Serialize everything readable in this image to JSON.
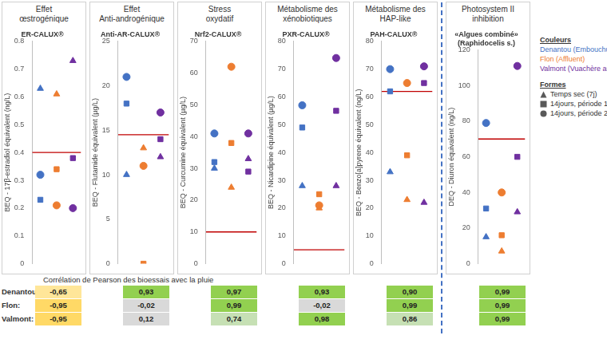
{
  "sites": [
    {
      "name": "Denantou (Embouchure)",
      "short": "Denantou:",
      "color": "#4472c4"
    },
    {
      "name": "Flon (Affluent)",
      "short": "Flon:",
      "color": "#ed7d31"
    },
    {
      "name": "Valmont (Vuachère amont)",
      "short": "Valmont:",
      "color": "#7030a0"
    }
  ],
  "forms": [
    {
      "name": "Temps sec (7j)",
      "marker": "triangle"
    },
    {
      "name": "14jours, période 1",
      "marker": "square"
    },
    {
      "name": "14jours, période 2",
      "marker": "circle"
    }
  ],
  "legend_titles": [
    "Couleurs",
    "Formes"
  ],
  "threshold_color": "#c00000",
  "correlation_title": "Corrélation de Pearson des bioessais avec la pluie",
  "chart_data": [
    {
      "type": "scatter",
      "title": [
        "Effet",
        "œstrogénique"
      ],
      "subtitle": [
        "ER-CALUX®"
      ],
      "y_label": "BEQ - 17β-estradiol équivalent (ng/L)",
      "ylim": [
        0,
        0.8
      ],
      "yticks": [
        0,
        0.1,
        0.2,
        0.3,
        0.4,
        0.5,
        0.6,
        0.7,
        0.8
      ],
      "grid": false,
      "tick_labels": "y",
      "threshold": 0.4,
      "values": [
        [
          0.63,
          0.23,
          0.32
        ],
        [
          0.61,
          0.34,
          0.21
        ],
        [
          0.73,
          0.38,
          0.2
        ]
      ],
      "correlation": [
        {
          "value": -0.65,
          "label": "-0,65"
        },
        {
          "value": -0.95,
          "label": "-0,95"
        },
        {
          "value": -0.95,
          "label": "-0,95"
        }
      ]
    },
    {
      "type": "scatter",
      "title": [
        "Effet",
        "Anti-androgénique"
      ],
      "subtitle": [
        "Anti-AR-CALUX®"
      ],
      "y_label": "BEQ - Flutamide équivalent (µg/L)",
      "ylim": [
        0,
        25
      ],
      "yticks": [
        0,
        5,
        10,
        15,
        20,
        25
      ],
      "grid": false,
      "tick_labels": "y",
      "threshold": 14.5,
      "values": [
        [
          10,
          18,
          21
        ],
        [
          13,
          0,
          11
        ],
        [
          12,
          14,
          17
        ]
      ],
      "correlation": [
        {
          "value": 0.93,
          "label": "0,93"
        },
        {
          "value": -0.02,
          "label": "-0,02"
        },
        {
          "value": 0.12,
          "label": "0,12"
        }
      ]
    },
    {
      "type": "scatter",
      "title": [
        "Stress",
        "oxydatif"
      ],
      "subtitle": [
        "Nrf2-CALUX®"
      ],
      "y_label": "BEQ - Curcumine équivalent (µg/L)",
      "ylim": [
        0,
        70
      ],
      "yticks": [
        0,
        10,
        20,
        30,
        40,
        50,
        60,
        70
      ],
      "grid": false,
      "tick_labels": "y",
      "threshold": 10,
      "values": [
        [
          30,
          32,
          41
        ],
        [
          24,
          38,
          62
        ],
        [
          33,
          29,
          41
        ]
      ],
      "correlation": [
        {
          "value": 0.97,
          "label": "0,97"
        },
        {
          "value": 0.99,
          "label": "0,99"
        },
        {
          "value": 0.74,
          "label": "0,74"
        }
      ]
    },
    {
      "type": "scatter",
      "title": [
        "Métabolisme des",
        "xénobiotiques"
      ],
      "subtitle": [
        "PXR-CALUX®"
      ],
      "y_label": "BEQ - Nicardipine équivalent (µg/L)",
      "ylim": [
        0,
        80
      ],
      "yticks": [
        0,
        10,
        20,
        30,
        40,
        50,
        60,
        70,
        80
      ],
      "grid": false,
      "tick_labels": "y",
      "threshold": 5,
      "values": [
        [
          28,
          49,
          57
        ],
        [
          20,
          25,
          21
        ],
        [
          28,
          55,
          74
        ]
      ],
      "correlation": [
        {
          "value": 0.93,
          "label": "0,93"
        },
        {
          "value": -0.02,
          "label": "-0,02"
        },
        {
          "value": 0.98,
          "label": "0,98"
        }
      ]
    },
    {
      "type": "scatter",
      "title": [
        "Métabolisme des",
        "HAP-like"
      ],
      "subtitle": [
        "PAH-CALUX®"
      ],
      "y_label": "BEQ - Benzo[a]pyrene équivalent (ng/L)",
      "ylim": [
        0,
        80
      ],
      "yticks": [
        0,
        10,
        20,
        30,
        40,
        50,
        60,
        70,
        80
      ],
      "grid": false,
      "tick_labels": "y",
      "threshold": 62,
      "values": [
        [
          33,
          62,
          70
        ],
        [
          23,
          39,
          65
        ],
        [
          22,
          65,
          71
        ]
      ],
      "correlation": [
        {
          "value": 0.9,
          "label": "0,90"
        },
        {
          "value": 0.99,
          "label": "0,99"
        },
        {
          "value": 0.86,
          "label": "0,86"
        }
      ]
    },
    {
      "type": "scatter",
      "title": [
        "Photosystem II",
        "inhibition"
      ],
      "subtitle": [
        "«Algues combiné»",
        "(Raphidocelis s.)"
      ],
      "y_label": "DEQ - Diuron équivalent (ng/L)",
      "ylim": [
        0,
        120
      ],
      "yticks": [
        0,
        20,
        40,
        60,
        80,
        100,
        120
      ],
      "grid": false,
      "tick_labels": "y",
      "threshold": 70,
      "values": [
        [
          15,
          31,
          79
        ],
        [
          7,
          16,
          40
        ],
        [
          29,
          60,
          111
        ]
      ],
      "correlation": [
        {
          "value": 0.99,
          "label": "0,99"
        },
        {
          "value": 0.99,
          "label": "0,99"
        },
        {
          "value": 0.99,
          "label": "0,99"
        }
      ]
    }
  ]
}
